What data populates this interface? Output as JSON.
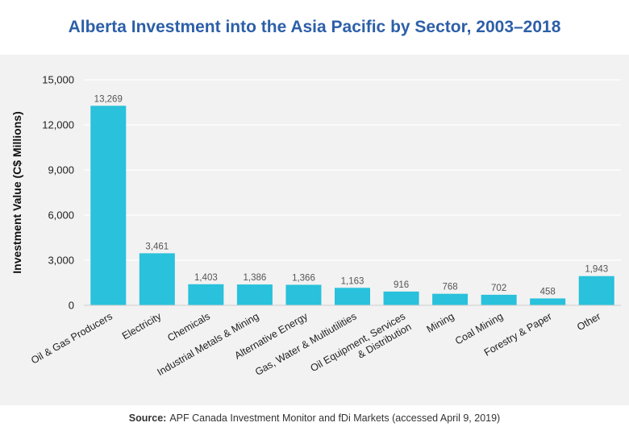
{
  "colors": {
    "title": "#2d5fa8",
    "bar": "#29c1db",
    "plot_background": "#f2f2f2",
    "grid": "#ffffff"
  },
  "footer": {
    "source_label": "Source:",
    "source_text": "APF Canada Investment Monitor and fDi Markets (accessed April 9, 2019)"
  },
  "chart_data": {
    "type": "bar",
    "title": "Alberta Investment into the Asia Pacific by Sector, 2003–2018",
    "xlabel": "",
    "ylabel": "Investment Value (C$ Millions)",
    "ylim": [
      0,
      15000
    ],
    "yticks": [
      0,
      3000,
      6000,
      9000,
      12000,
      15000
    ],
    "ytick_labels": [
      "0",
      "3,000",
      "6,000",
      "9,000",
      "12,000",
      "15,000"
    ],
    "grid": true,
    "categories": [
      [
        "Oil & Gas Producers"
      ],
      [
        "Electricity"
      ],
      [
        "Chemicals"
      ],
      [
        "Industrial Metals & Mining"
      ],
      [
        "Alternative Energy"
      ],
      [
        "Gas, Water & Multiutilities"
      ],
      [
        "Oil Equipment, Services",
        "& Distribution"
      ],
      [
        "Mining"
      ],
      [
        "Coal Mining"
      ],
      [
        "Forestry & Paper"
      ],
      [
        "Other"
      ]
    ],
    "values": [
      13269,
      3461,
      1403,
      1386,
      1366,
      1163,
      916,
      768,
      702,
      458,
      1943
    ],
    "data_labels": [
      "13,269",
      "3,461",
      "1,403",
      "1,386",
      "1,366",
      "1,163",
      "916",
      "768",
      "702",
      "458",
      "1,943"
    ]
  }
}
